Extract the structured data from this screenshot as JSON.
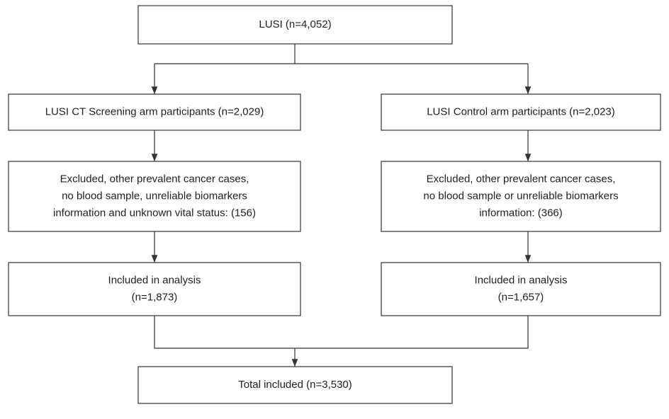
{
  "nodes": [
    {
      "lines": [
        "LUSI (n=4,052)"
      ]
    },
    {
      "lines": [
        "LUSI CT Screening arm participants (n=2,029)"
      ]
    },
    {
      "lines": [
        "LUSI Control arm participants (n=2,023)"
      ]
    },
    {
      "lines": [
        "Excluded, other prevalent cancer cases,",
        "no blood sample, unreliable biomarkers",
        "information and unknown vital status: (156)"
      ]
    },
    {
      "lines": [
        "Excluded, other prevalent cancer cases,",
        "no blood sample or unreliable biomarkers",
        "information: (366)"
      ]
    },
    {
      "lines": [
        "Included in analysis",
        "(n=1,873)"
      ]
    },
    {
      "lines": [
        "Included in analysis",
        "(n=1,657)"
      ]
    },
    {
      "lines": [
        "Total included (n=3,530)"
      ]
    }
  ]
}
